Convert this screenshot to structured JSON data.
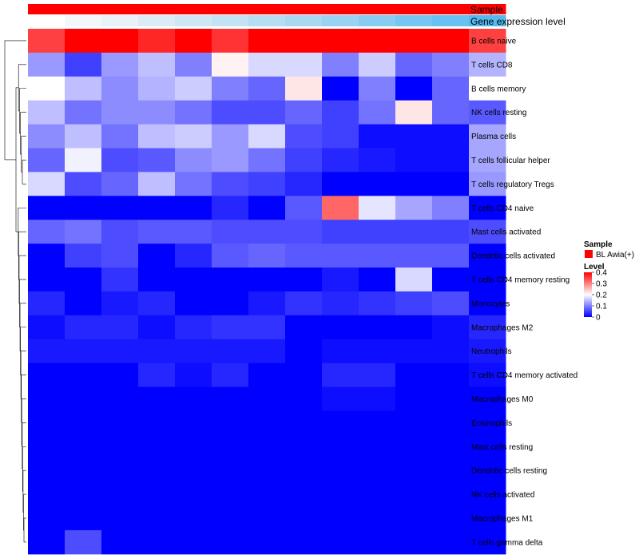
{
  "chart_data": {
    "type": "heatmap",
    "title": "",
    "annotation_rows": [
      {
        "label": "Sample"
      },
      {
        "label": "Gene expression level"
      }
    ],
    "rows": [
      "B cells naive",
      "T cells CD8",
      "B cells memory",
      "NK cells resting",
      "Plasma cells",
      "T cells follicular helper",
      "T cells regulatory  Tregs",
      "T cells CD4 naive",
      "Mast cells activated",
      "Dendritic cells activated",
      "T cells CD4 memory resting",
      "Monocytes",
      "Macrophages M2",
      "Neutrophils",
      "T cells CD4 memory activated",
      "Macrophages M0",
      "Eosinophils",
      "Mast cells resting",
      "Dendritic cells resting",
      "NK cells activated",
      "Macrophages M1",
      "T cells gamma delta"
    ],
    "column_count": 13,
    "gene_expression_level_colors": [
      "#ffffff",
      "#f3f7fa",
      "#e9f2f8",
      "#dbecf6",
      "#cfe7f4",
      "#c3e2f3",
      "#b6ddf2",
      "#a9d8f2",
      "#99d2f2",
      "#88ccf1",
      "#77c6f1",
      "#68c1f0",
      "#54b9ee"
    ],
    "values": [
      [
        0.35,
        0.41,
        0.45,
        0.37,
        0.42,
        0.36,
        0.45,
        0.42,
        0.45,
        0.47,
        0.45,
        0.46,
        0.35
      ],
      [
        0.12,
        0.05,
        0.12,
        0.15,
        0.1,
        0.21,
        0.17,
        0.17,
        0.1,
        0.16,
        0.08,
        0.1,
        0.14
      ],
      [
        0.2,
        0.15,
        0.11,
        0.14,
        0.16,
        0.1,
        0.08,
        0.22,
        0.0,
        0.1,
        0.0,
        0.08,
        0.2
      ],
      [
        0.15,
        0.09,
        0.11,
        0.11,
        0.09,
        0.06,
        0.06,
        0.08,
        0.05,
        0.09,
        0.22,
        0.08,
        0.07
      ],
      [
        0.11,
        0.15,
        0.09,
        0.15,
        0.16,
        0.12,
        0.17,
        0.06,
        0.05,
        0.01,
        0.01,
        0.01,
        0.13
      ],
      [
        0.08,
        0.19,
        0.06,
        0.07,
        0.11,
        0.12,
        0.09,
        0.05,
        0.03,
        0.02,
        0.01,
        0.01,
        0.13
      ],
      [
        0.17,
        0.06,
        0.08,
        0.15,
        0.09,
        0.06,
        0.05,
        0.03,
        0.0,
        0.0,
        0.0,
        0.0,
        0.12
      ],
      [
        0.0,
        0.0,
        0.0,
        0.0,
        0.0,
        0.03,
        0.0,
        0.07,
        0.32,
        0.18,
        0.13,
        0.1,
        0.0
      ],
      [
        0.08,
        0.09,
        0.06,
        0.07,
        0.07,
        0.06,
        0.06,
        0.06,
        0.05,
        0.05,
        0.05,
        0.05,
        0.06
      ],
      [
        0.0,
        0.05,
        0.06,
        0.0,
        0.03,
        0.07,
        0.08,
        0.07,
        0.07,
        0.07,
        0.07,
        0.07,
        0.0
      ],
      [
        0.0,
        0.0,
        0.04,
        0.0,
        0.0,
        0.0,
        0.0,
        0.0,
        0.02,
        0.0,
        0.17,
        0.0,
        0.0
      ],
      [
        0.03,
        0.0,
        0.02,
        0.03,
        0.0,
        0.0,
        0.02,
        0.04,
        0.03,
        0.04,
        0.05,
        0.06,
        0.0
      ],
      [
        0.01,
        0.03,
        0.03,
        0.01,
        0.03,
        0.04,
        0.04,
        0.0,
        0.0,
        0.0,
        0.0,
        0.01,
        0.03
      ],
      [
        0.02,
        0.02,
        0.02,
        0.02,
        0.02,
        0.02,
        0.02,
        0.0,
        0.01,
        0.01,
        0.01,
        0.01,
        0.02
      ],
      [
        0.0,
        0.0,
        0.0,
        0.03,
        0.01,
        0.03,
        0.0,
        0.0,
        0.03,
        0.03,
        0.0,
        0.0,
        0.01
      ],
      [
        0.0,
        0.0,
        0.0,
        0.0,
        0.0,
        0.0,
        0.0,
        0.0,
        0.01,
        0.01,
        0.0,
        0.0,
        0.0
      ],
      [
        0.0,
        0.0,
        0.0,
        0.0,
        0.0,
        0.0,
        0.0,
        0.0,
        0.0,
        0.0,
        0.0,
        0.0,
        0.0
      ],
      [
        0.0,
        0.0,
        0.0,
        0.0,
        0.0,
        0.0,
        0.0,
        0.0,
        0.0,
        0.0,
        0.0,
        0.0,
        0.0
      ],
      [
        0.0,
        0.0,
        0.0,
        0.0,
        0.0,
        0.0,
        0.0,
        0.0,
        0.0,
        0.0,
        0.0,
        0.0,
        0.0
      ],
      [
        0.0,
        0.0,
        0.0,
        0.0,
        0.0,
        0.0,
        0.0,
        0.0,
        0.0,
        0.0,
        0.0,
        0.0,
        0.0
      ],
      [
        0.0,
        0.0,
        0.0,
        0.0,
        0.0,
        0.0,
        0.0,
        0.0,
        0.0,
        0.0,
        0.0,
        0.0,
        0.0
      ],
      [
        0.0,
        0.06,
        0.0,
        0.0,
        0.0,
        0.0,
        0.0,
        0.0,
        0.0,
        0.0,
        0.0,
        0.0,
        0.0
      ]
    ],
    "color_scale": {
      "min": 0,
      "max": 0.4,
      "stops": [
        {
          "value": 0,
          "color": "#0000ff"
        },
        {
          "value": 0.2,
          "color": "#ffffff"
        },
        {
          "value": 0.4,
          "color": "#ff0000"
        }
      ]
    },
    "legend": {
      "placement": "right",
      "sample": {
        "title": "Sample",
        "entries": [
          {
            "label": "BL Awia(+)",
            "color": "#ff0000"
          }
        ]
      },
      "level": {
        "title": "Level",
        "ticks": [
          "0.4",
          "0.3",
          "0.2",
          "0.1",
          "0"
        ]
      }
    },
    "row_dendrogram": true
  }
}
